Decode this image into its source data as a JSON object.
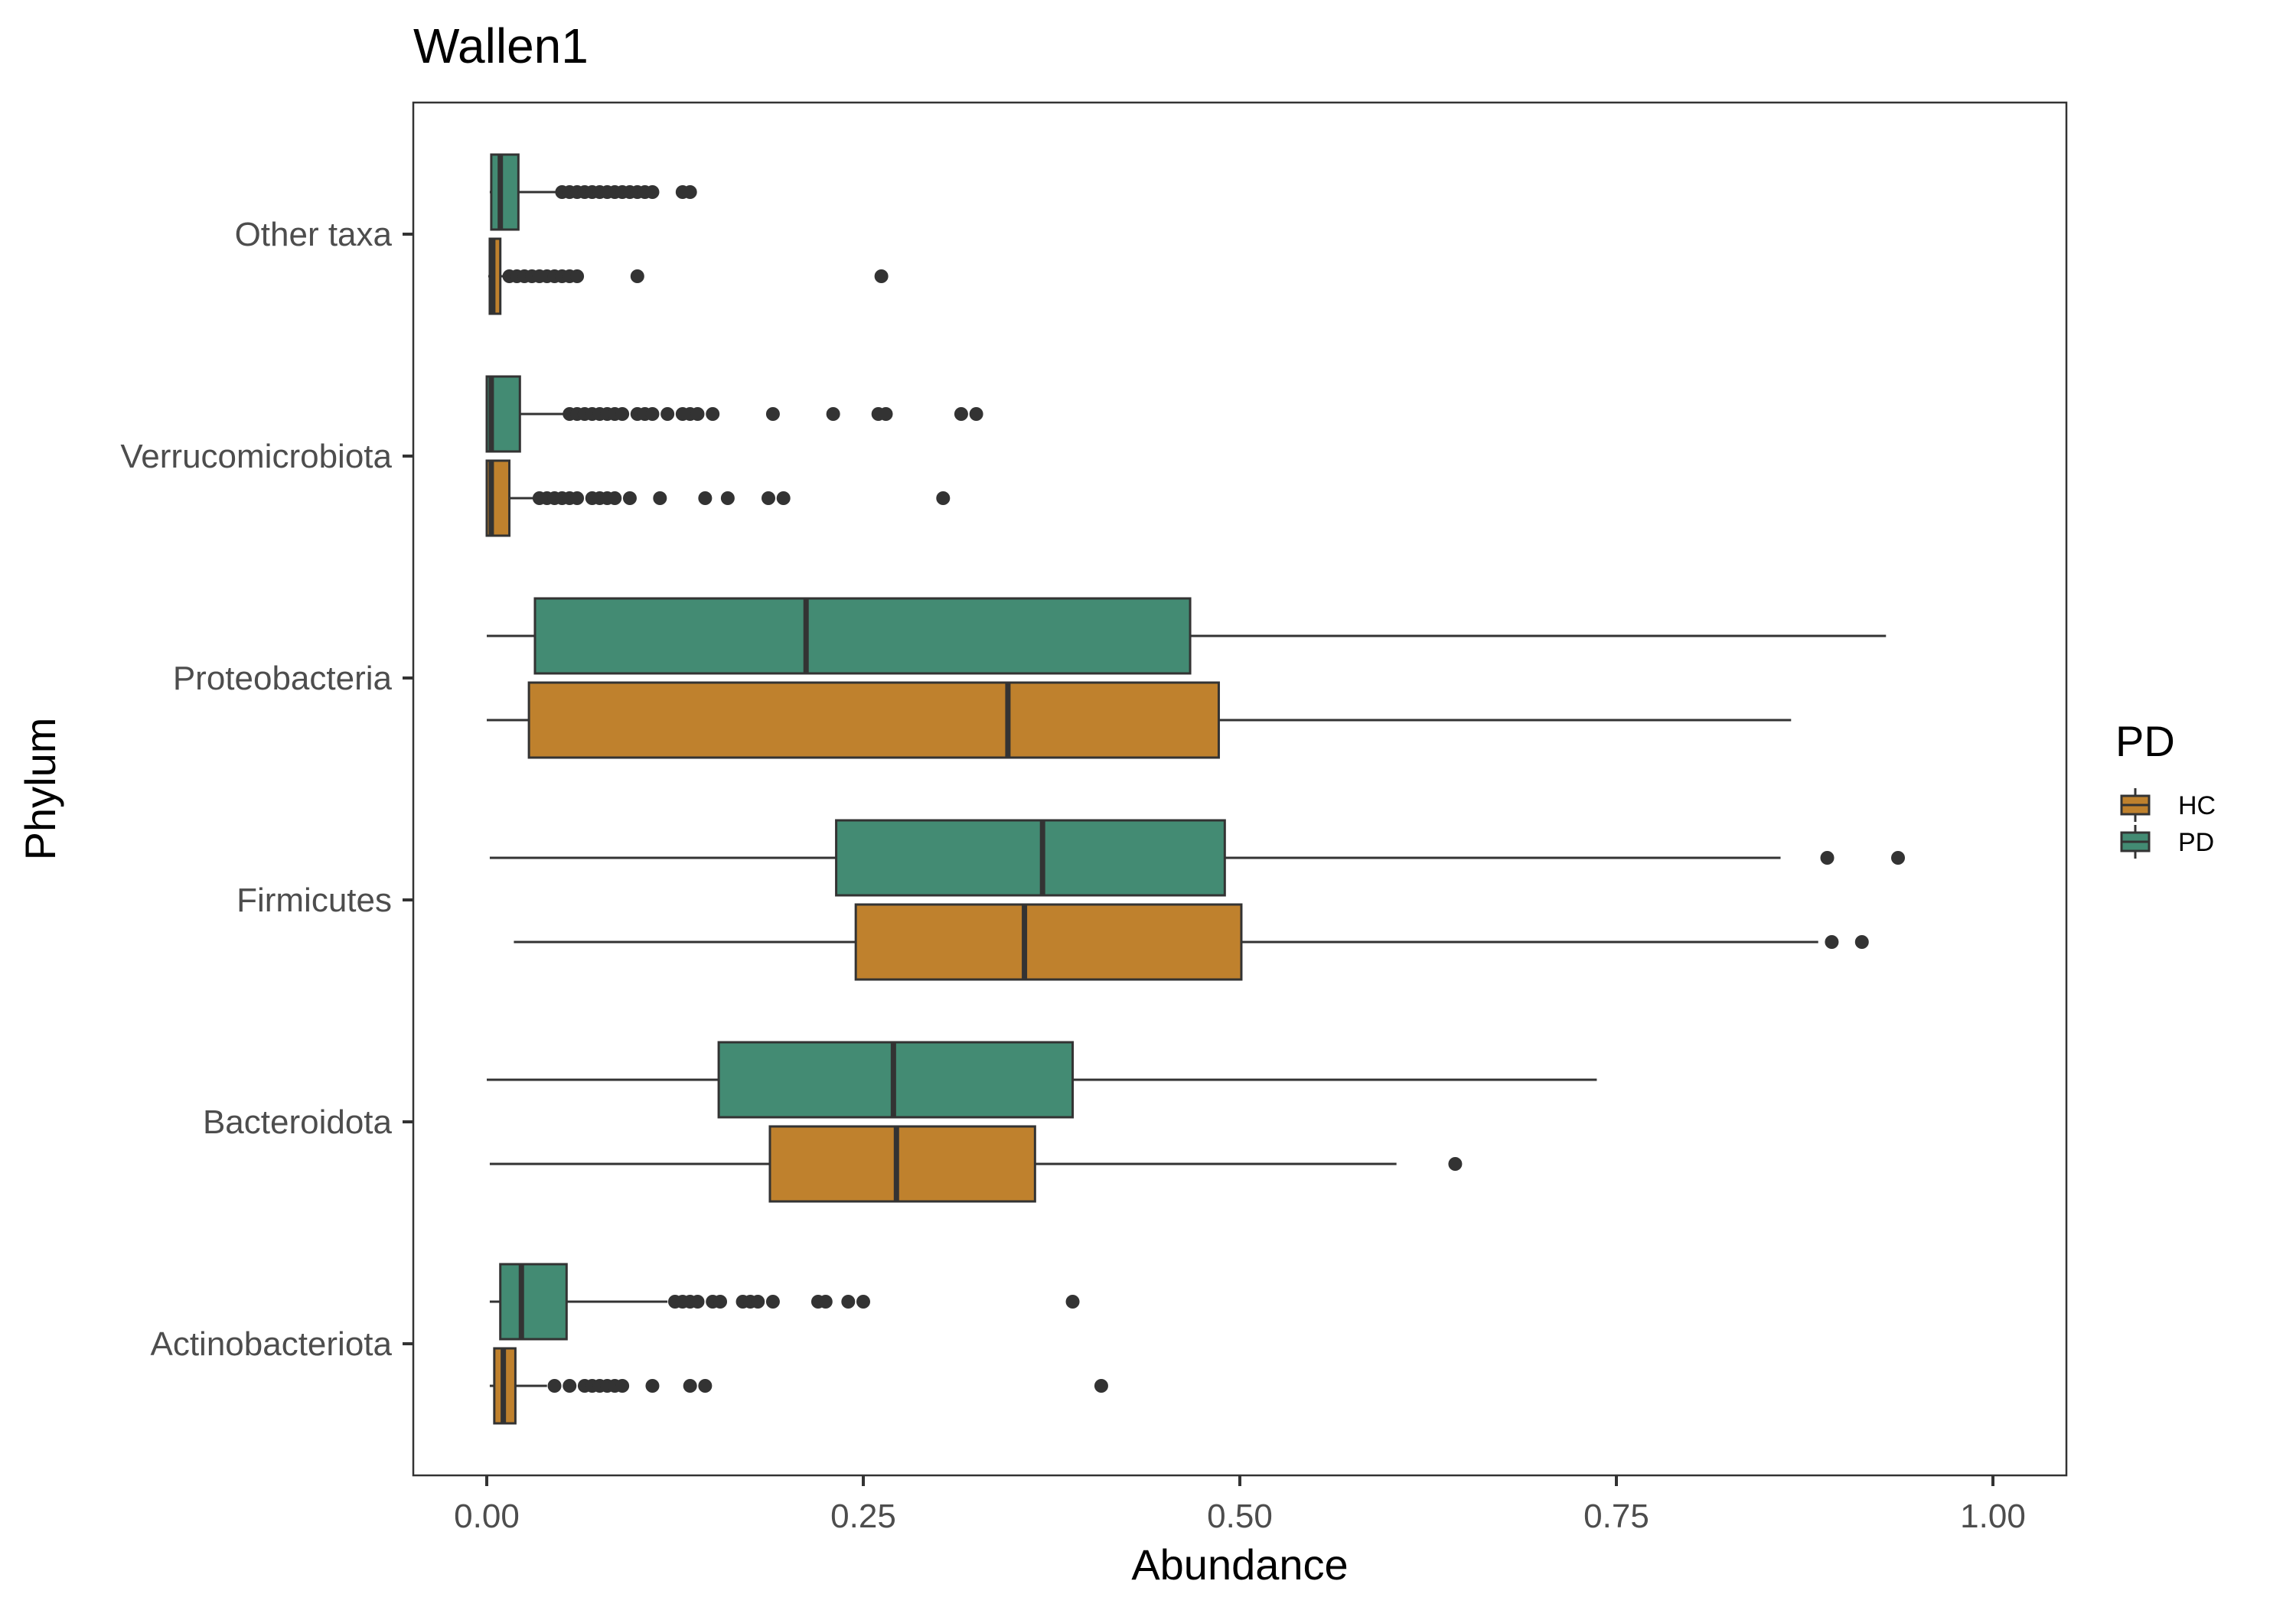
{
  "chart_data": {
    "type": "boxplot",
    "orientation": "horizontal",
    "title": "Wallen1",
    "xlabel": "Abundance",
    "ylabel": "Phylum",
    "xlim": [
      0,
      1
    ],
    "x_ticks": [
      "0.00",
      "0.25",
      "0.50",
      "0.75",
      "1.00"
    ],
    "x_tick_values": [
      0,
      0.25,
      0.5,
      0.75,
      1
    ],
    "grid": false,
    "legend": {
      "title": "PD",
      "position": "right",
      "entries": [
        {
          "label": "HC",
          "color": "#BF812D"
        },
        {
          "label": "PD",
          "color": "#438B73"
        }
      ]
    },
    "categories": [
      "Other taxa",
      "Verrucomicrobiota",
      "Proteobacteria",
      "Firmicutes",
      "Bacteroidota",
      "Actinobacteriota"
    ],
    "series": [
      {
        "name": "PD",
        "color": "#438B73",
        "boxes": [
          {
            "category": "Other taxa",
            "min": 0.002,
            "q1": 0.003,
            "median": 0.009,
            "q3": 0.021,
            "max": 0.047,
            "outliers": [
              0.05,
              0.055,
              0.06,
              0.065,
              0.07,
              0.075,
              0.08,
              0.085,
              0.09,
              0.095,
              0.1,
              0.105,
              0.11,
              0.13,
              0.135
            ]
          },
          {
            "category": "Verrucomicrobiota",
            "min": 0.0,
            "q1": 0.0,
            "median": 0.003,
            "q3": 0.022,
            "max": 0.052,
            "outliers": [
              0.055,
              0.06,
              0.065,
              0.07,
              0.075,
              0.08,
              0.085,
              0.09,
              0.1,
              0.105,
              0.11,
              0.12,
              0.13,
              0.135,
              0.14,
              0.15,
              0.19,
              0.23,
              0.26,
              0.265,
              0.315,
              0.325
            ]
          },
          {
            "category": "Proteobacteria",
            "min": 0.0,
            "q1": 0.032,
            "median": 0.212,
            "q3": 0.467,
            "max": 0.929,
            "outliers": []
          },
          {
            "category": "Firmicutes",
            "min": 0.002,
            "q1": 0.232,
            "median": 0.369,
            "q3": 0.49,
            "max": 0.859,
            "outliers": [
              0.89,
              0.937
            ]
          },
          {
            "category": "Bacteroidota",
            "min": 0.0,
            "q1": 0.154,
            "median": 0.27,
            "q3": 0.389,
            "max": 0.737,
            "outliers": []
          },
          {
            "category": "Actinobacteriota",
            "min": 0.002,
            "q1": 0.009,
            "median": 0.023,
            "q3": 0.053,
            "max": 0.12,
            "outliers": [
              0.125,
              0.13,
              0.135,
              0.14,
              0.15,
              0.155,
              0.17,
              0.175,
              0.18,
              0.19,
              0.22,
              0.225,
              0.24,
              0.25,
              0.389
            ]
          }
        ]
      },
      {
        "name": "HC",
        "color": "#BF812D",
        "boxes": [
          {
            "category": "Other taxa",
            "min": 0.001,
            "q1": 0.002,
            "median": 0.004,
            "q3": 0.009,
            "max": 0.013,
            "outliers": [
              0.015,
              0.02,
              0.025,
              0.03,
              0.035,
              0.04,
              0.045,
              0.05,
              0.055,
              0.06,
              0.1,
              0.262
            ]
          },
          {
            "category": "Verrucomicrobiota",
            "min": 0.0,
            "q1": 0.0,
            "median": 0.003,
            "q3": 0.015,
            "max": 0.033,
            "outliers": [
              0.035,
              0.04,
              0.045,
              0.05,
              0.055,
              0.06,
              0.07,
              0.075,
              0.08,
              0.085,
              0.095,
              0.115,
              0.145,
              0.16,
              0.187,
              0.197,
              0.303
            ]
          },
          {
            "category": "Proteobacteria",
            "min": 0.0,
            "q1": 0.028,
            "median": 0.346,
            "q3": 0.486,
            "max": 0.866,
            "outliers": []
          },
          {
            "category": "Firmicutes",
            "min": 0.018,
            "q1": 0.245,
            "median": 0.357,
            "q3": 0.501,
            "max": 0.884,
            "outliers": [
              0.893,
              0.913
            ]
          },
          {
            "category": "Bacteroidota",
            "min": 0.002,
            "q1": 0.188,
            "median": 0.272,
            "q3": 0.364,
            "max": 0.604,
            "outliers": [
              0.643
            ]
          },
          {
            "category": "Actinobacteriota",
            "min": 0.002,
            "q1": 0.005,
            "median": 0.011,
            "q3": 0.019,
            "max": 0.04,
            "outliers": [
              0.045,
              0.055,
              0.065,
              0.07,
              0.075,
              0.08,
              0.085,
              0.09,
              0.11,
              0.135,
              0.145,
              0.408
            ]
          }
        ]
      }
    ]
  }
}
